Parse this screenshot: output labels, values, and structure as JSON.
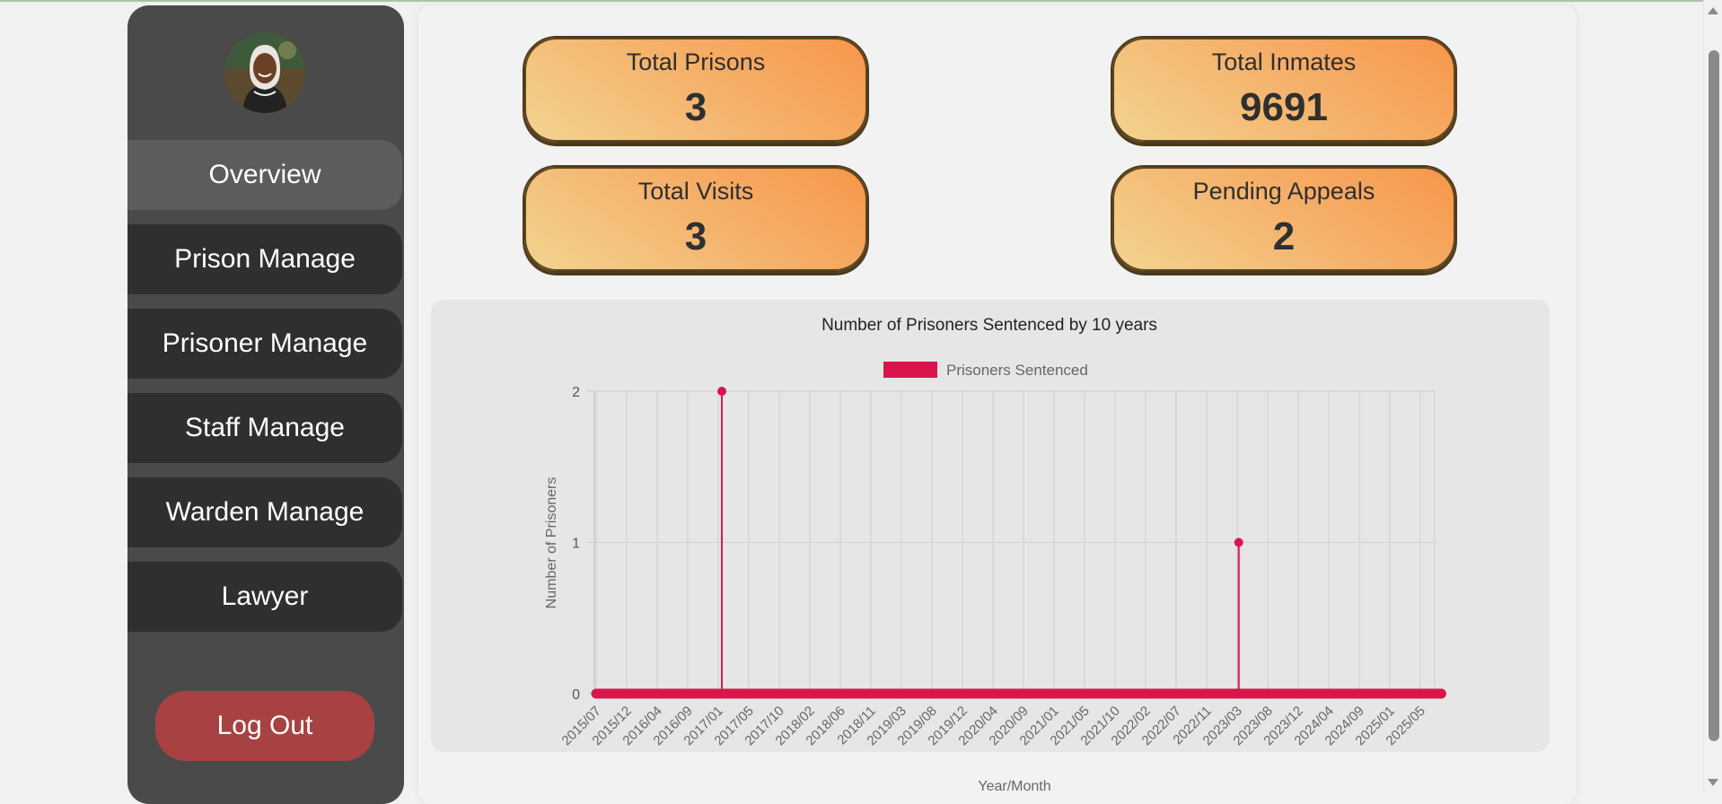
{
  "sidebar": {
    "avatar_alt": "user-avatar",
    "items": [
      {
        "label": "Overview",
        "active": true
      },
      {
        "label": "Prison Manage",
        "active": false
      },
      {
        "label": "Prisoner Manage",
        "active": false
      },
      {
        "label": "Staff Manage",
        "active": false
      },
      {
        "label": "Warden Manage",
        "active": false
      },
      {
        "label": "Lawyer",
        "active": false
      }
    ],
    "logout_label": "Log Out"
  },
  "stats": [
    {
      "label": "Total Prisons",
      "value": "3"
    },
    {
      "label": "Total Inmates",
      "value": "9691"
    },
    {
      "label": "Total Visits",
      "value": "3"
    },
    {
      "label": "Pending Appeals",
      "value": "2"
    }
  ],
  "colors": {
    "series": "#d8164d",
    "logout": "#a84242",
    "card_gradient_start": "#f2d590",
    "card_gradient_end": "#f7964a"
  },
  "chart_data": {
    "type": "line",
    "title": "Number of Prisoners Sentenced by 10 years",
    "xlabel": "Year/Month",
    "ylabel": "Number of Prisoners",
    "legend": "top",
    "grid": true,
    "ylim": [
      0,
      2
    ],
    "yticks": [
      "0",
      "1",
      "2"
    ],
    "x_tick_labels": [
      "2015/07",
      "2015/12",
      "2016/04",
      "2016/09",
      "2017/01",
      "2017/05",
      "2017/10",
      "2018/02",
      "2018/06",
      "2018/11",
      "2019/03",
      "2019/08",
      "2019/12",
      "2020/04",
      "2020/09",
      "2021/01",
      "2021/05",
      "2021/10",
      "2022/02",
      "2022/07",
      "2022/11",
      "2023/03",
      "2023/08",
      "2023/12",
      "2024/04",
      "2024/09",
      "2025/01",
      "2025/05"
    ],
    "series": [
      {
        "name": "Prisoners Sentenced",
        "points": [
          {
            "x": "2015/07",
            "y": 0
          },
          {
            "x": "2017/01",
            "y": 2
          },
          {
            "x": "2023/03",
            "y": 1
          },
          {
            "x": "2025/08",
            "y": 0
          }
        ]
      }
    ]
  }
}
